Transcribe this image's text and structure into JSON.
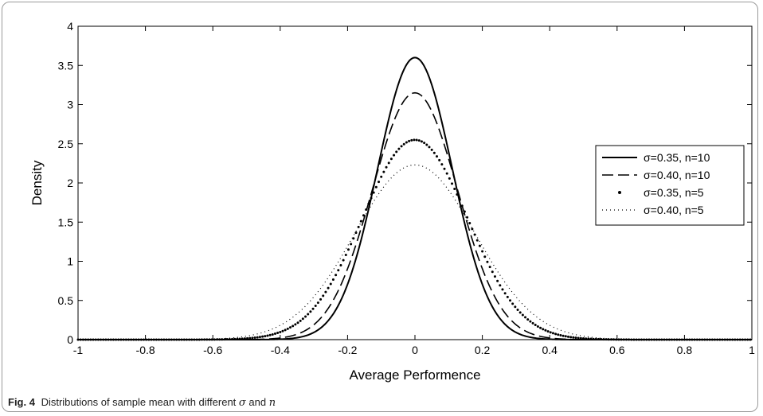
{
  "chart_data": {
    "type": "line",
    "title": "",
    "xlabel": "Average Performence",
    "ylabel": "Density",
    "xlim": [
      -1,
      1
    ],
    "ylim": [
      0,
      4
    ],
    "x_ticks": [
      "-1",
      "-0.8",
      "-0.6",
      "-0.4",
      "-0.2",
      "0",
      "0.2",
      "0.4",
      "0.6",
      "0.8",
      "1"
    ],
    "y_ticks": [
      "0",
      "0.5",
      "1",
      "1.5",
      "2",
      "2.5",
      "3",
      "3.5",
      "4"
    ],
    "grid": false,
    "legend_position": "right",
    "series": [
      {
        "name": "σ=0.35, n=10",
        "sigma": 0.35,
        "n": 10,
        "peak": 3.6,
        "style": "solid"
      },
      {
        "name": "σ=0.40, n=10",
        "sigma": 0.4,
        "n": 10,
        "peak": 3.15,
        "style": "dashed"
      },
      {
        "name": "σ=0.35, n=5",
        "sigma": 0.35,
        "n": 5,
        "peak": 2.55,
        "style": "dotted-heavy"
      },
      {
        "name": "σ=0.40, n=5",
        "sigma": 0.4,
        "n": 5,
        "peak": 2.23,
        "style": "dotted-light"
      }
    ]
  },
  "caption": {
    "label": "Fig. 4",
    "text_before": "Distributions of sample mean with different",
    "sigma_symbol": "σ",
    "and_word": "and",
    "n_symbol": "n"
  }
}
